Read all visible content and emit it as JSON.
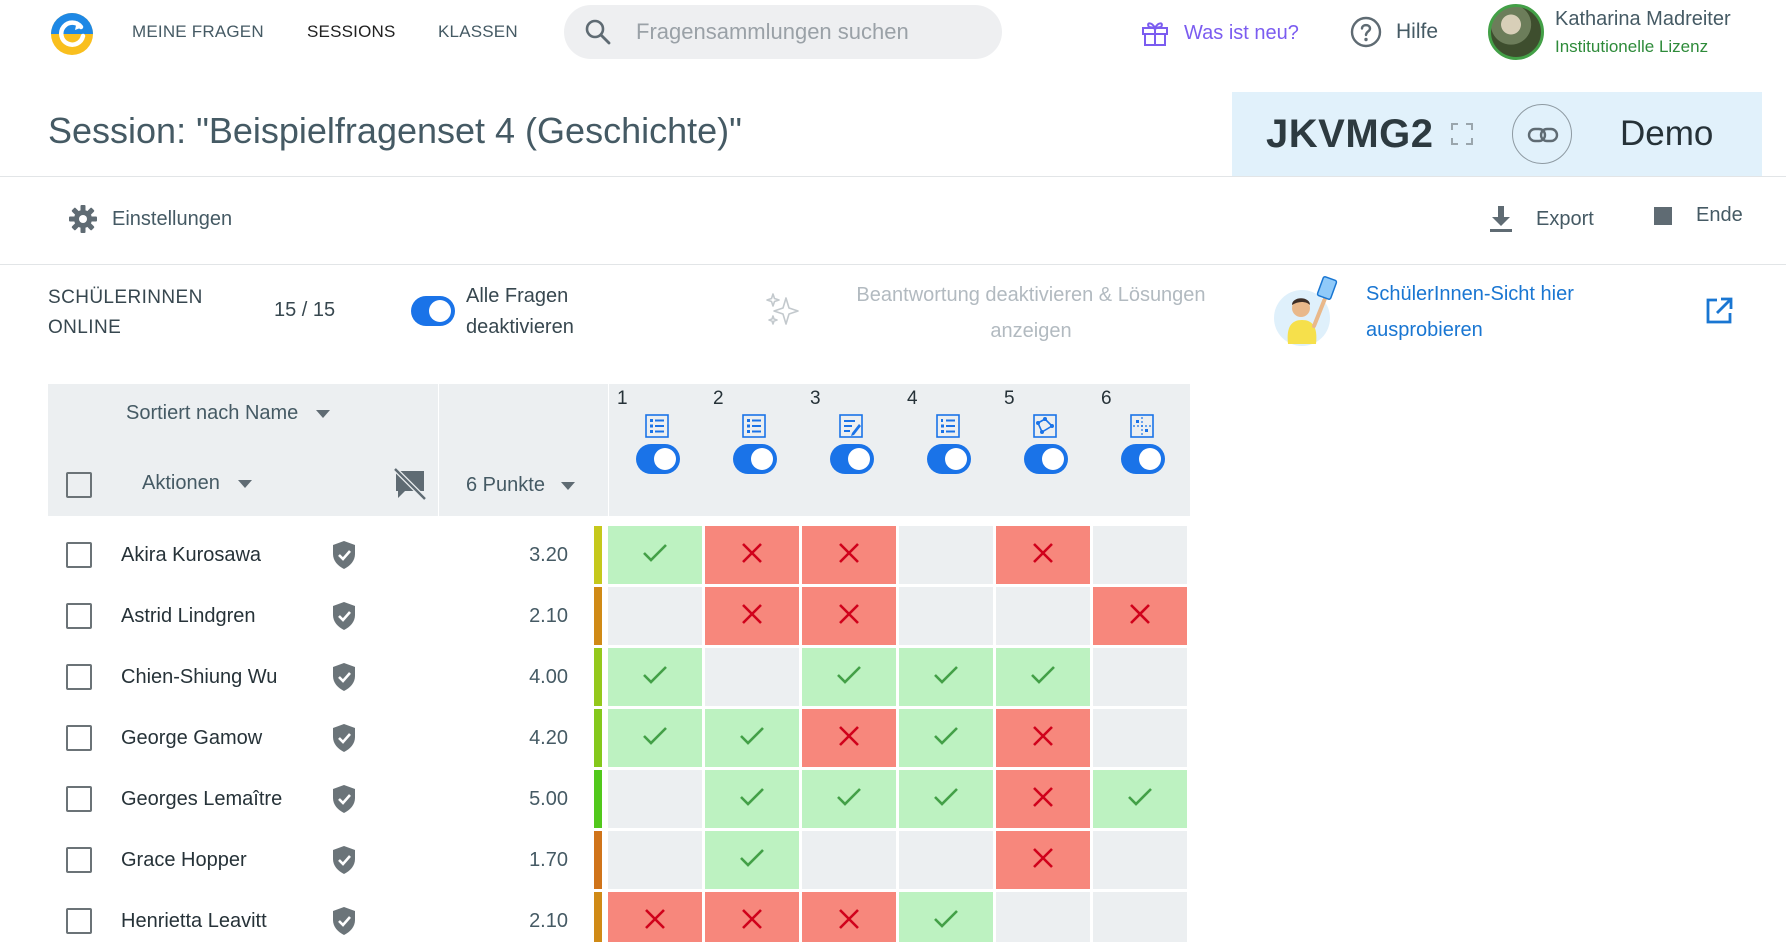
{
  "nav": {
    "links": [
      "MEINE FRAGEN",
      "SESSIONS",
      "KLASSEN"
    ],
    "search_placeholder": "Fragensammlungen suchen",
    "whats_new": "Was ist neu?",
    "help": "Hilfe",
    "user_name": "Katharina Madreiter",
    "user_license": "Institutionelle Lizenz"
  },
  "session": {
    "title": "Session: \"Beispielfragenset 4 (Geschichte)\"",
    "code": "JKVMG2",
    "mode": "Demo"
  },
  "toolbar": {
    "settings": "Einstellungen",
    "export": "Export",
    "end": "Ende"
  },
  "status": {
    "online_label": "SCHÜLERINNEN ONLINE",
    "online_count": "15 / 15",
    "deactivate_all": "Alle Fragen deaktivieren",
    "reveal": "Beantwortung deaktivieren & Lösungen anzeigen",
    "try_student_view": "SchülerInnen-Sicht hier ausprobieren"
  },
  "grid": {
    "sort_label": "Sortiert nach Name",
    "actions_label": "Aktionen",
    "points_label": "6 Punkte",
    "questions": [
      {
        "num": "1",
        "icon": "multiple-choice-icon"
      },
      {
        "num": "2",
        "icon": "multiple-choice-icon"
      },
      {
        "num": "3",
        "icon": "text-answer-icon"
      },
      {
        "num": "4",
        "icon": "ordering-icon"
      },
      {
        "num": "5",
        "icon": "graph-icon"
      },
      {
        "num": "6",
        "icon": "matching-grid-icon"
      }
    ],
    "students": [
      {
        "name": "Akira Kurosawa",
        "score": "3.20",
        "bar_color": "#c5c81c",
        "answers": [
          "ok",
          "no",
          "no",
          "none",
          "no",
          "none"
        ]
      },
      {
        "name": "Astrid Lindgren",
        "score": "2.10",
        "bar_color": "#d08a16",
        "answers": [
          "none",
          "no",
          "no",
          "none",
          "none",
          "no"
        ]
      },
      {
        "name": "Chien-Shiung Wu",
        "score": "4.00",
        "bar_color": "#94c81c",
        "answers": [
          "ok",
          "none",
          "ok",
          "ok",
          "ok",
          "none"
        ]
      },
      {
        "name": "George Gamow",
        "score": "4.20",
        "bar_color": "#84c81c",
        "answers": [
          "ok",
          "ok",
          "no",
          "ok",
          "no",
          "none"
        ]
      },
      {
        "name": "Georges Lemaître",
        "score": "5.00",
        "bar_color": "#52c81c",
        "answers": [
          "none",
          "ok",
          "ok",
          "ok",
          "no",
          "ok"
        ]
      },
      {
        "name": "Grace Hopper",
        "score": "1.70",
        "bar_color": "#d0741a",
        "answers": [
          "none",
          "ok",
          "none",
          "none",
          "no",
          "none"
        ]
      },
      {
        "name": "Henrietta Leavitt",
        "score": "2.10",
        "bar_color": "#d08a16",
        "answers": [
          "no",
          "no",
          "no",
          "ok",
          "none",
          "none"
        ]
      }
    ]
  },
  "colors": {
    "accent": "#1a73e8",
    "correct": "#bdf2c1",
    "wrong": "#f7877c",
    "unanswered": "#eceff1",
    "code_box": "#e1f1fb"
  }
}
